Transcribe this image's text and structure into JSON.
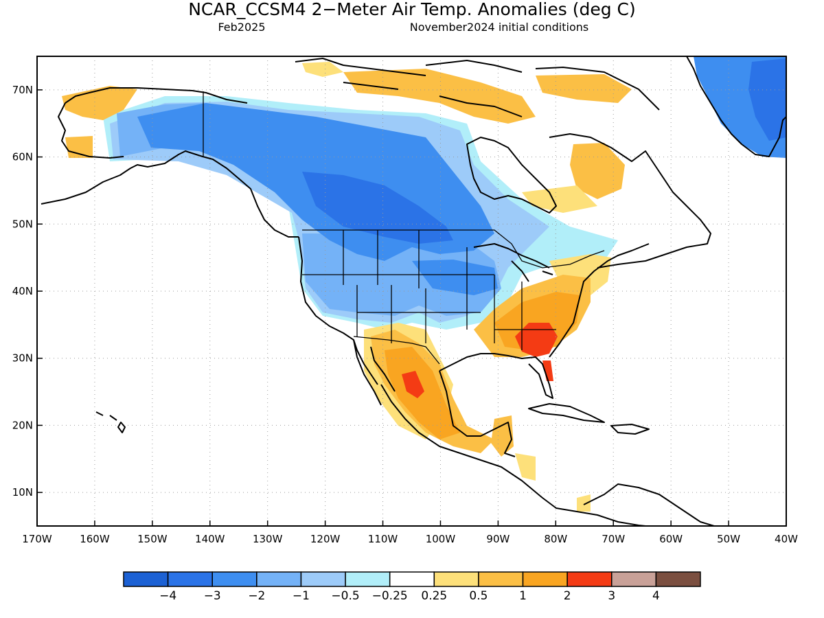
{
  "title": "NCAR_CCSM4 2−Meter Air Temp. Anomalies (deg C)",
  "valid_month": "Feb2025",
  "init_label": "November2024 initial conditions",
  "map": {
    "lon_range": [
      -170,
      -40
    ],
    "lat_range": [
      5,
      75
    ],
    "x_ticks": [
      "170W",
      "160W",
      "150W",
      "140W",
      "130W",
      "120W",
      "110W",
      "100W",
      "90W",
      "80W",
      "70W",
      "60W",
      "50W",
      "40W"
    ],
    "y_ticks": [
      "10N",
      "20N",
      "30N",
      "40N",
      "50N",
      "60N",
      "70N"
    ],
    "x_tick_values": [
      -170,
      -160,
      -150,
      -140,
      -130,
      -120,
      -110,
      -100,
      -90,
      -80,
      -70,
      -60,
      -50,
      -40
    ],
    "y_tick_values": [
      10,
      20,
      30,
      40,
      50,
      60,
      70
    ],
    "grid": "dotted"
  },
  "colorbar": {
    "colors": [
      "#1c61d4",
      "#2b73e7",
      "#3e8ef0",
      "#74b2f7",
      "#9dcbf9",
      "#b1eef9",
      "#ffffff",
      "#fde07a",
      "#fbbf45",
      "#f9a521",
      "#f43b14",
      "#c9a198",
      "#7b4f40"
    ],
    "labels": [
      "−4",
      "−3",
      "−2",
      "−1",
      "−0.5",
      "−0.25",
      "0.25",
      "0.5",
      "1",
      "2",
      "3",
      "4"
    ]
  },
  "anomaly_regions": [
    {
      "name": "central-canada",
      "level": "-3",
      "color": "#2b73e7"
    },
    {
      "name": "western-canada",
      "level": "-2",
      "color": "#3e8ef0"
    },
    {
      "name": "northern-plains",
      "level": "-2",
      "color": "#3e8ef0"
    },
    {
      "name": "western-us",
      "level": "-1",
      "color": "#74b2f7"
    },
    {
      "name": "alaska-interior",
      "level": "-1",
      "color": "#74b2f7"
    },
    {
      "name": "greenland",
      "level": "-2",
      "color": "#3e8ef0"
    },
    {
      "name": "southeast-us",
      "level": "2",
      "color": "#f9a521"
    },
    {
      "name": "georgia-carolina",
      "level": "3",
      "color": "#f43b14"
    },
    {
      "name": "mexico",
      "level": "2",
      "color": "#f9a521"
    },
    {
      "name": "hudson-bay-east",
      "level": "1",
      "color": "#fbbf45"
    }
  ]
}
